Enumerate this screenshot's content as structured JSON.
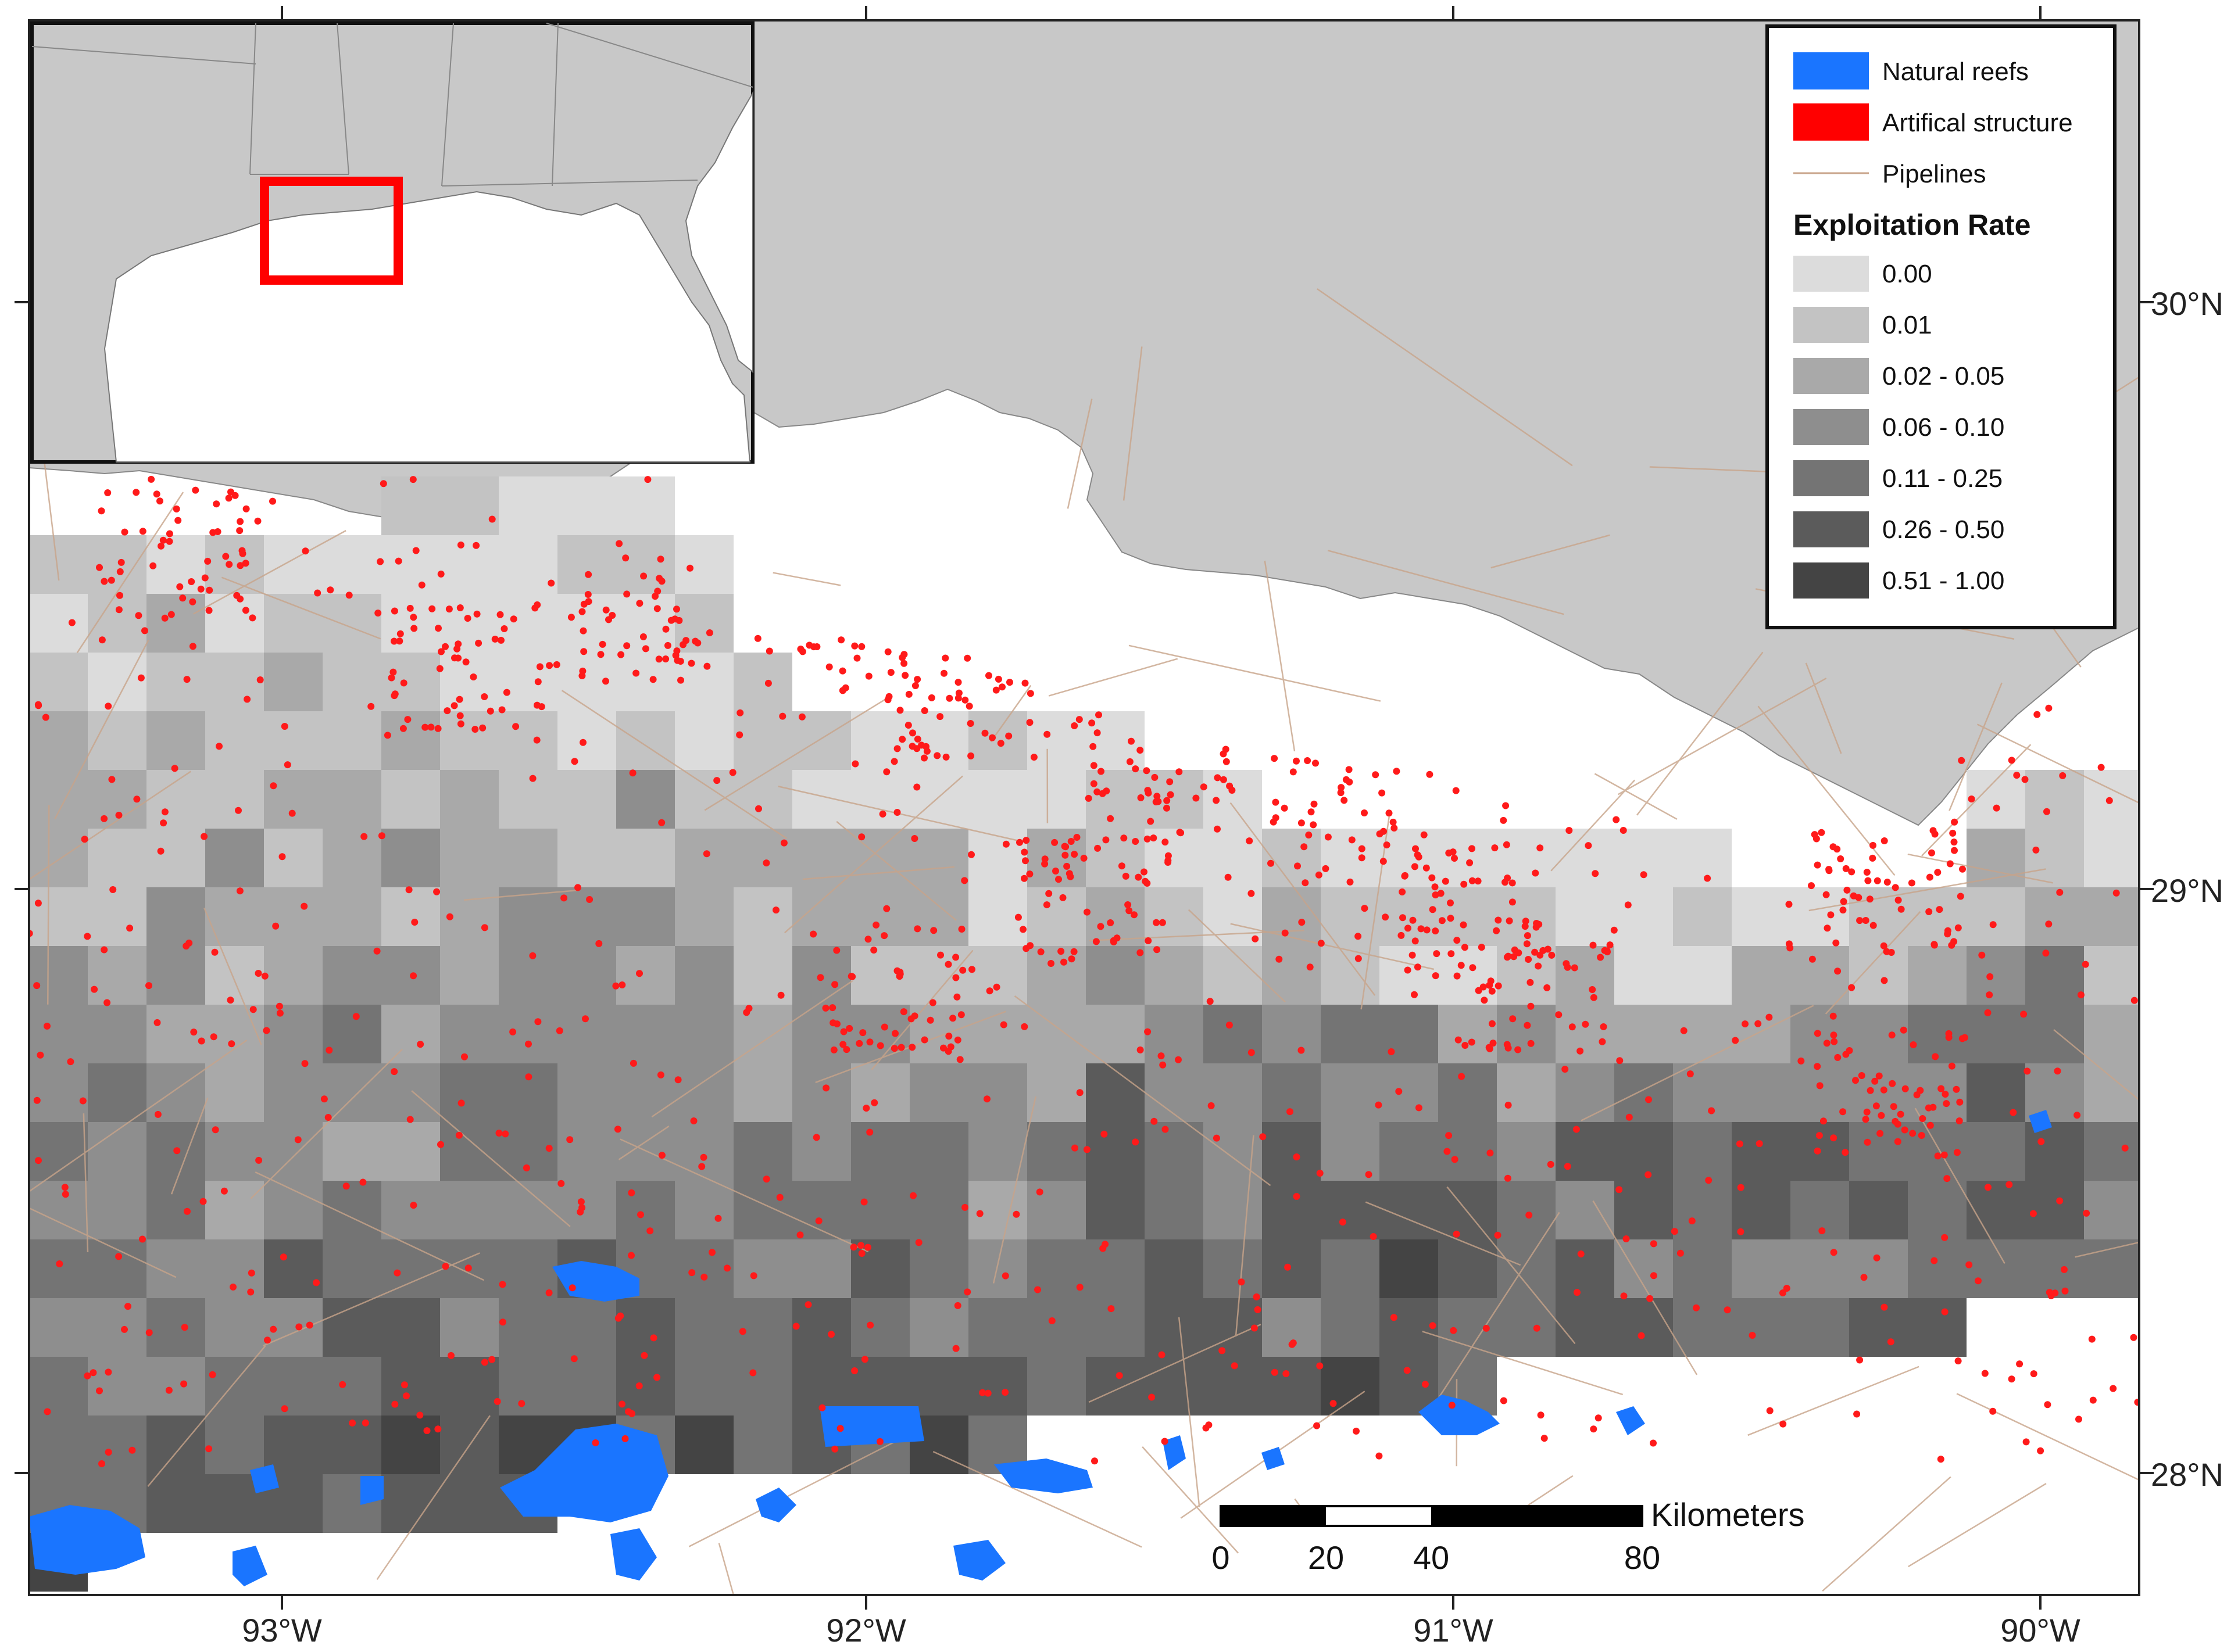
{
  "map": {
    "longitude_labels": [
      "93°W",
      "92°W",
      "91°W",
      "90°W"
    ],
    "latitude_labels": [
      "30°N",
      "29°N",
      "28°N"
    ]
  },
  "legend": {
    "items": [
      {
        "label": "Natural reefs",
        "color": "#1a75ff"
      },
      {
        "label": "Artifical structure",
        "color": "#ff0000"
      },
      {
        "label": "Pipelines",
        "color": "#c8a48a"
      }
    ],
    "title": "Exploitation Rate",
    "classes": [
      {
        "label": "0.00",
        "color": "#dcdcdc"
      },
      {
        "label": "0.01",
        "color": "#c3c3c3"
      },
      {
        "label": "0.02 - 0.05",
        "color": "#a9a9a9"
      },
      {
        "label": "0.06 - 0.10",
        "color": "#8e8e8e"
      },
      {
        "label": "0.11 - 0.25",
        "color": "#747474"
      },
      {
        "label": "0.26 - 0.50",
        "color": "#5b5b5b"
      },
      {
        "label": "0.51 - 1.00",
        "color": "#444444"
      }
    ]
  },
  "scale_bar": {
    "unit": "Kilometers",
    "labels": [
      "0",
      "20",
      "40",
      "80"
    ]
  },
  "colors": {
    "land": "#c8c8c8",
    "water": "#ffffff",
    "inset_highlight": "#ff0000"
  }
}
